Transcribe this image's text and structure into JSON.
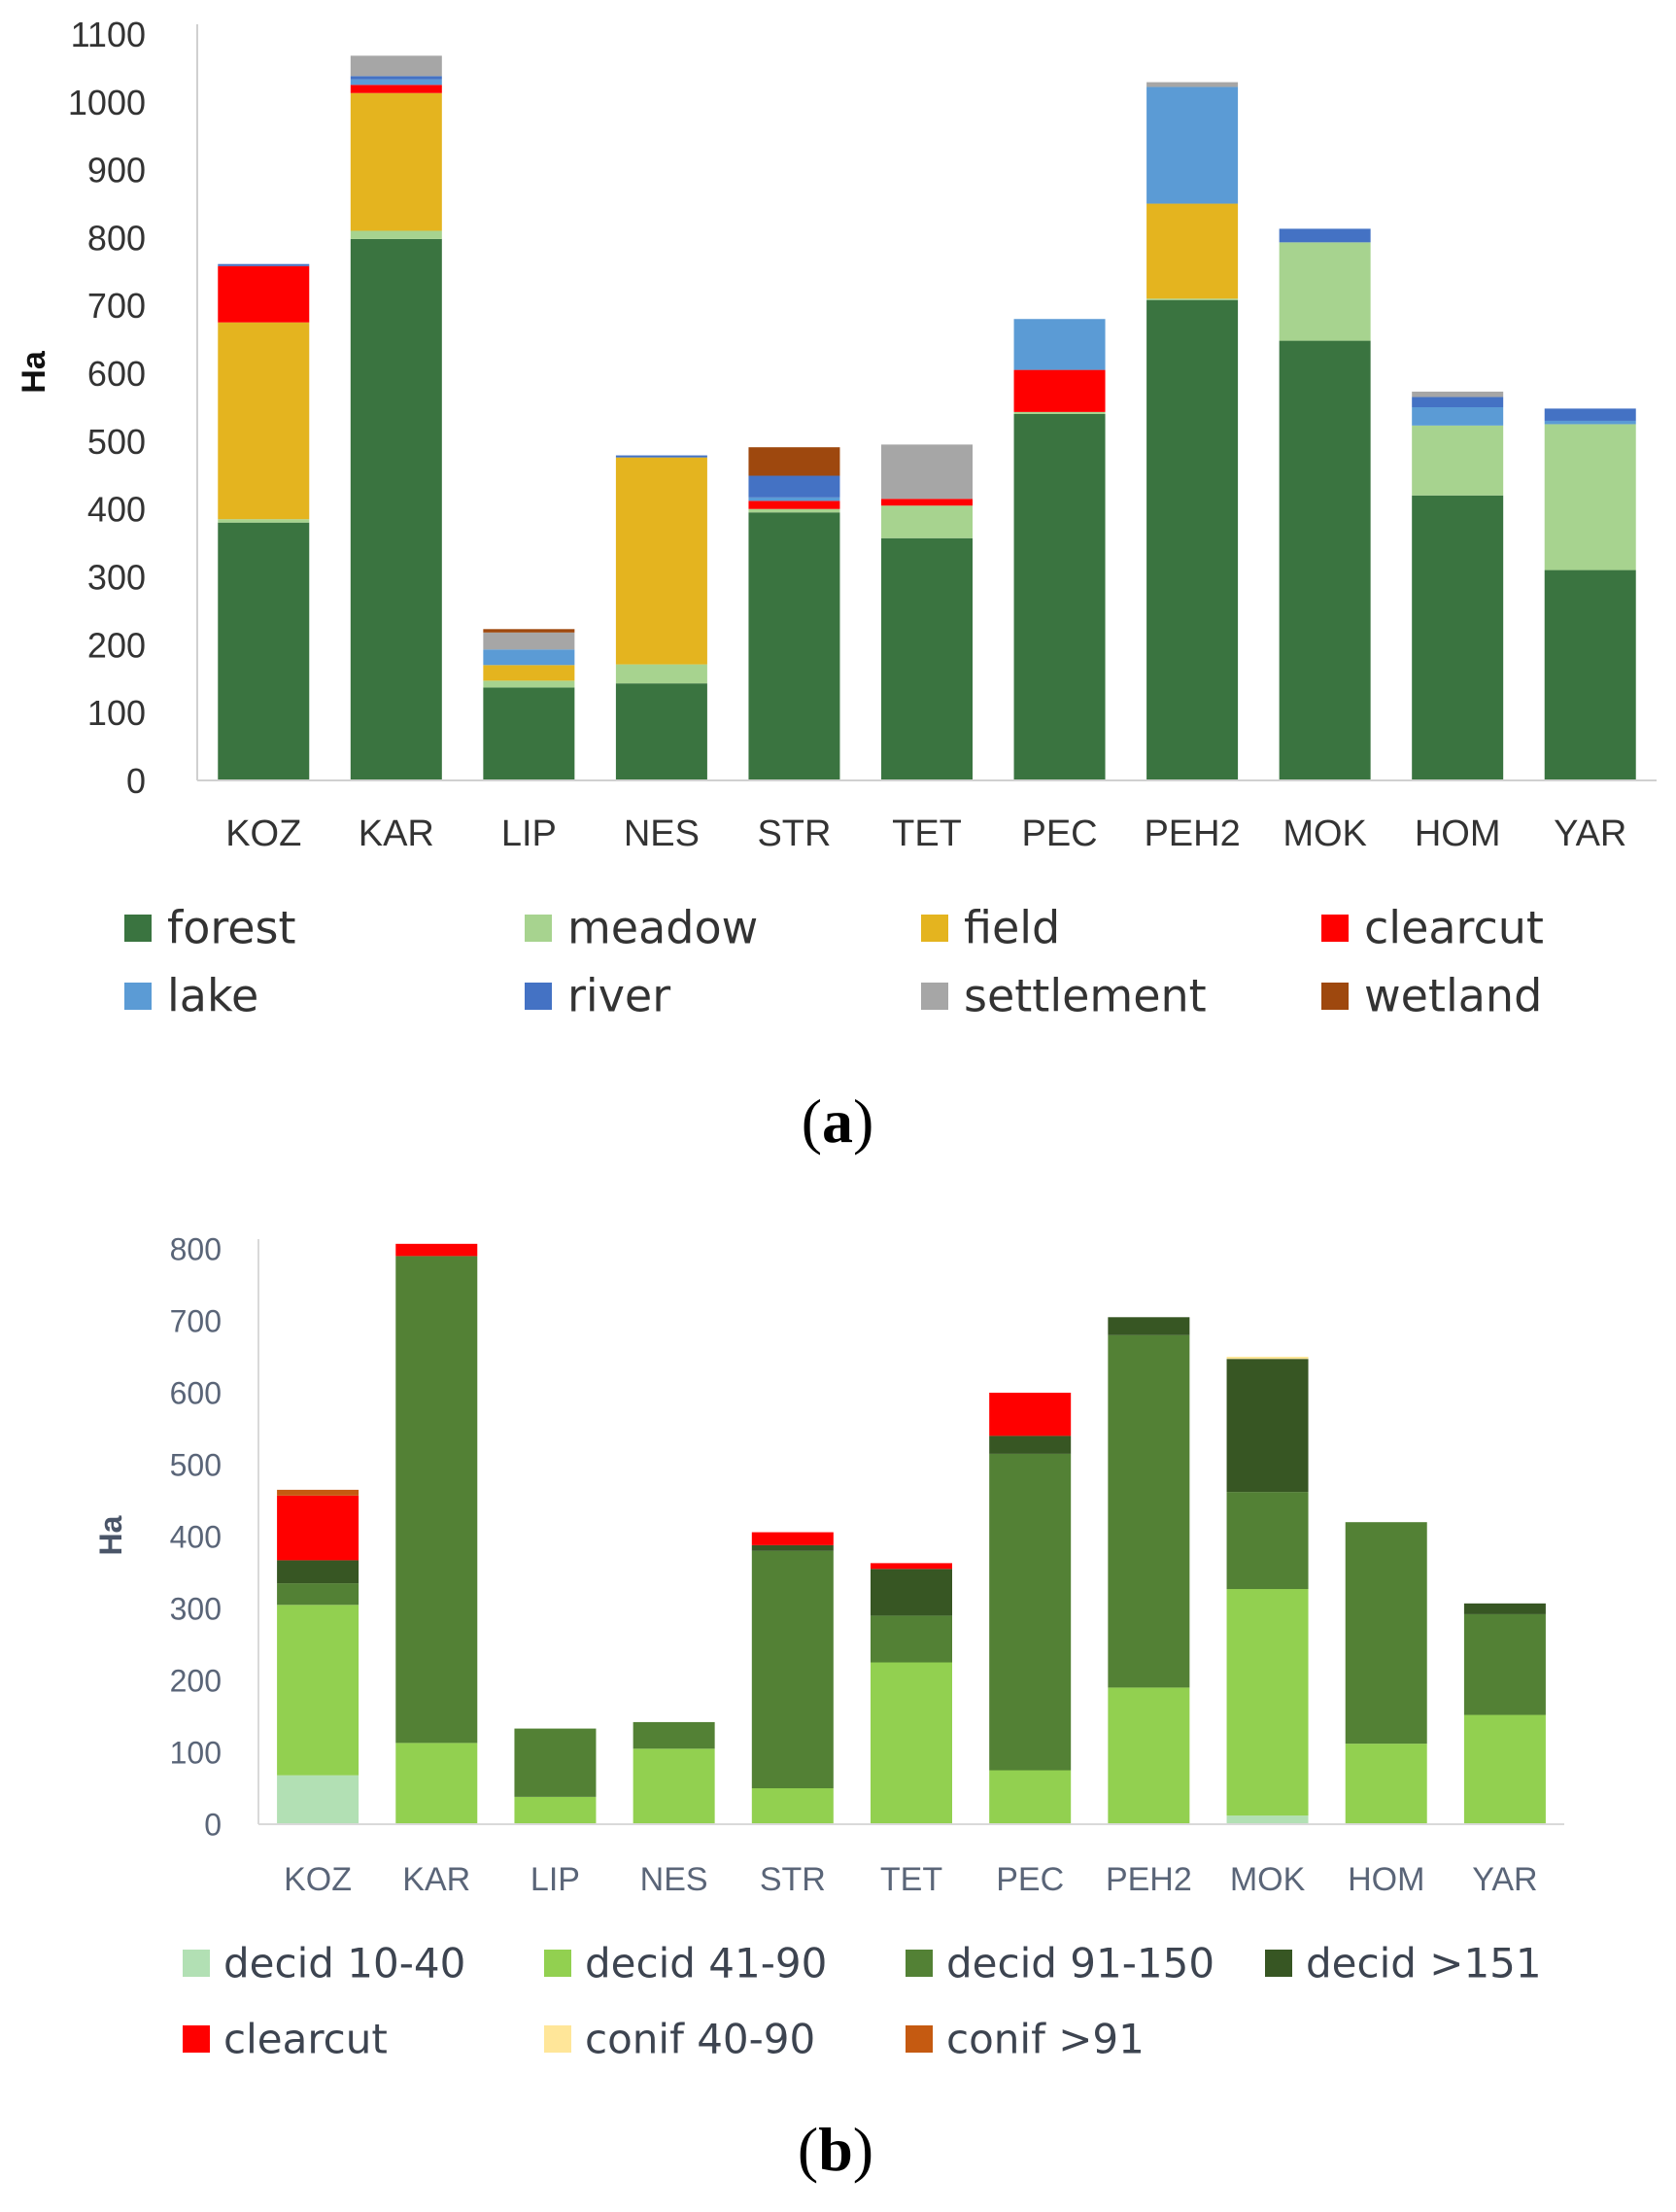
{
  "panels": [
    {
      "panel_label": "(a)",
      "panel_letter": "a",
      "colors": {
        "forest": "#3a7440",
        "meadow": "#a7d38f",
        "field": "#e4b41f",
        "clearcut": "#ff0000",
        "lake": "#5b9bd5",
        "river": "#4472c4",
        "settlement": "#a6a6a6",
        "wetland": "#9e480e"
      },
      "chart_data": {
        "type": "bar",
        "stacked": true,
        "ylabel": "Ha",
        "ylim": [
          0,
          1100
        ],
        "yticks": [
          0,
          100,
          200,
          300,
          400,
          500,
          600,
          700,
          800,
          900,
          1000,
          1100
        ],
        "grid": false,
        "legend_position": "bottom",
        "categories": [
          "KOZ",
          "KAR",
          "LIP",
          "NES",
          "STR",
          "TET",
          "PEC",
          "PEH2",
          "MOK",
          "HOM",
          "YAR"
        ],
        "series": [
          {
            "name": "forest",
            "values": [
              380,
              798,
              137,
              143,
              395,
              357,
              540,
              708,
              648,
              420,
              310
            ]
          },
          {
            "name": "meadow",
            "values": [
              5,
              12,
              10,
              28,
              5,
              48,
              3,
              2,
              145,
              103,
              215
            ]
          },
          {
            "name": "field",
            "values": [
              290,
              203,
              23,
              305,
              0,
              0,
              0,
              140,
              0,
              0,
              0
            ]
          },
          {
            "name": "clearcut",
            "values": [
              83,
              12,
              0,
              0,
              12,
              10,
              62,
              0,
              0,
              0,
              0
            ]
          },
          {
            "name": "lake",
            "values": [
              0,
              8,
              23,
              0,
              5,
              0,
              75,
              172,
              0,
              27,
              5
            ]
          },
          {
            "name": "river",
            "values": [
              3,
              5,
              0,
              3,
              32,
              0,
              0,
              0,
              20,
              15,
              18
            ]
          },
          {
            "name": "settlement",
            "values": [
              0,
              30,
              25,
              0,
              0,
              80,
              0,
              7,
              0,
              8,
              0
            ]
          },
          {
            "name": "wetland",
            "values": [
              0,
              0,
              5,
              0,
              42,
              0,
              0,
              0,
              0,
              0,
              0
            ]
          }
        ]
      }
    },
    {
      "panel_label": "(b)",
      "panel_letter": "b",
      "colors": {
        "decid 10-40": "#b2e0b4",
        "decid 41-90": "#92d050",
        "decid 91-150": "#538135",
        "decid >151": "#375623",
        "clearcut": "#ff0000",
        "conif 40-90": "#ffe699",
        "conif >91": "#c55a11"
      },
      "chart_data": {
        "type": "bar",
        "stacked": true,
        "ylabel": "Ha",
        "ylim": [
          0,
          800
        ],
        "yticks": [
          0,
          100,
          200,
          300,
          400,
          500,
          600,
          700,
          800
        ],
        "grid": false,
        "legend_position": "bottom",
        "categories": [
          "KOZ",
          "KAR",
          "LIP",
          "NES",
          "STR",
          "TET",
          "PEC",
          "PEH2",
          "MOK",
          "HOM",
          "YAR"
        ],
        "series": [
          {
            "name": "decid 10-40",
            "values": [
              68,
              0,
              0,
              0,
              0,
              0,
              0,
              0,
              12,
              0,
              0
            ]
          },
          {
            "name": "decid 41-90",
            "values": [
              237,
              113,
              38,
              105,
              50,
              225,
              75,
              190,
              315,
              112,
              152
            ]
          },
          {
            "name": "decid 91-150",
            "values": [
              30,
              677,
              95,
              37,
              330,
              65,
              440,
              490,
              135,
              308,
              140
            ]
          },
          {
            "name": "decid >151",
            "values": [
              32,
              0,
              0,
              0,
              8,
              65,
              25,
              25,
              185,
              0,
              15
            ]
          },
          {
            "name": "clearcut",
            "values": [
              90,
              17,
              0,
              0,
              18,
              8,
              60,
              0,
              0,
              0,
              0
            ]
          },
          {
            "name": "conif 40-90",
            "values": [
              0,
              0,
              0,
              0,
              0,
              0,
              0,
              0,
              3,
              0,
              0
            ]
          },
          {
            "name": "conif >91",
            "values": [
              8,
              0,
              0,
              0,
              0,
              0,
              0,
              0,
              0,
              0,
              0
            ]
          }
        ]
      }
    }
  ]
}
